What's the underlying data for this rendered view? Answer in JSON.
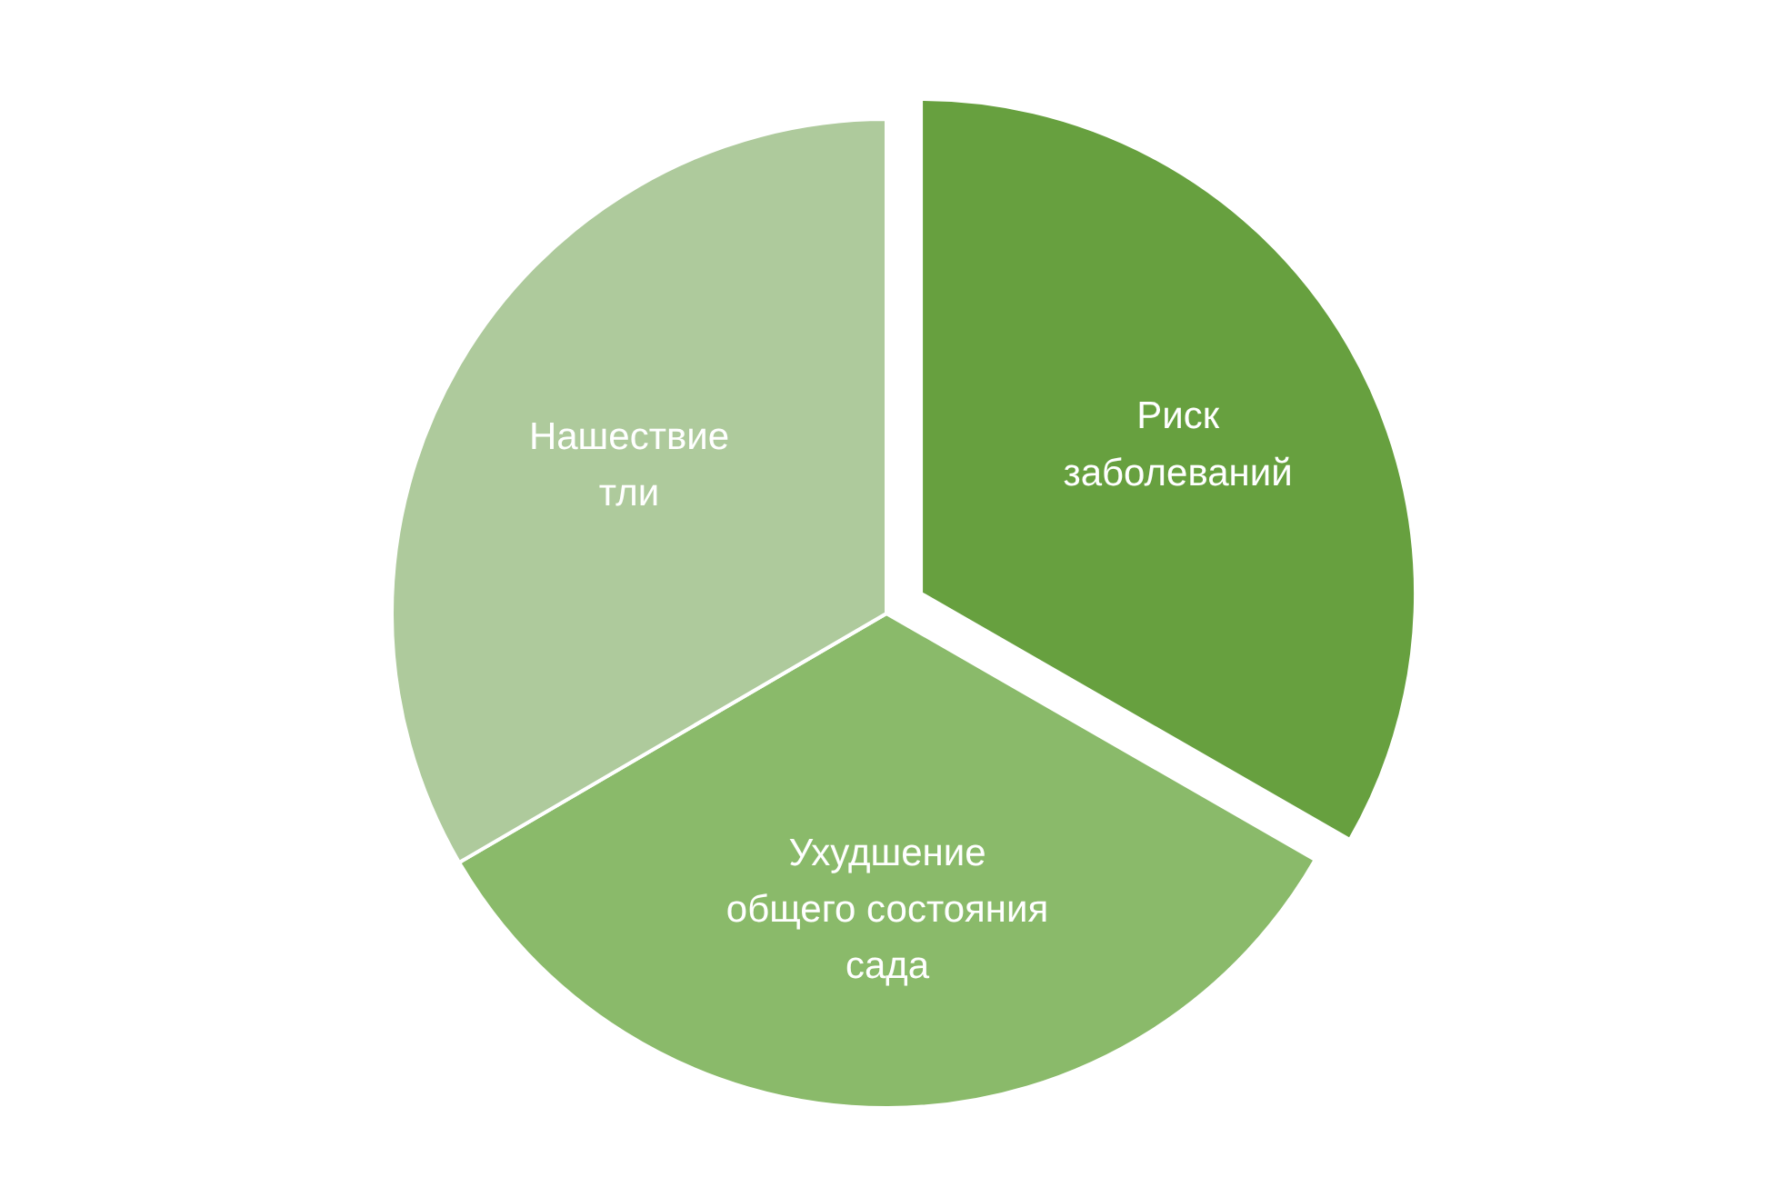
{
  "chart_data": {
    "type": "pie",
    "categories": [
      "Риск\nзаболеваний",
      "Ухудшение\nобщего состояния\nсада",
      "Нашествие\nтли"
    ],
    "values": [
      33.3,
      33.3,
      33.4
    ],
    "colors": [
      "#67a03f",
      "#8aba6a",
      "#aeca9c"
    ]
  }
}
